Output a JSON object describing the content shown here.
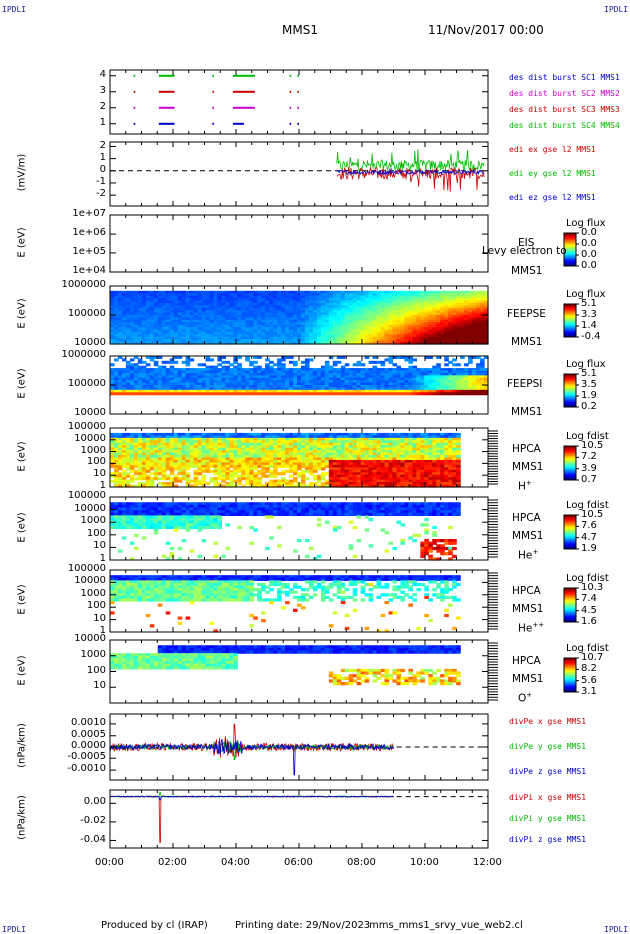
{
  "header": {
    "corner_tl": "IPDLI",
    "corner_tr": "IPDLI",
    "corner_bl": "IPDLI",
    "corner_br": "IPDLI",
    "mission": "MMS1",
    "datetime": "11/Nov/2017 00:00"
  },
  "footer": {
    "produced_by": "Produced by cl (IRAP)",
    "printing_date": "Printing date: 29/Nov/2023",
    "filename": "mms_mms1_srvy_vue_web2.cl"
  },
  "time_axis": {
    "ticks": [
      "00:00",
      "02:00",
      "04:00",
      "06:00",
      "08:00",
      "10:00",
      "12:00"
    ]
  },
  "panels": [
    {
      "id": "burst",
      "yticks": [
        "4",
        "3",
        "2",
        "1"
      ],
      "legend": [
        {
          "text": "des dist burst SC1 MMS1",
          "color": "#0000cc"
        },
        {
          "text": "des dist burst SC2 MMS2",
          "color": "#cc00cc"
        },
        {
          "text": "des dist burst SC3 MMS3",
          "color": "#cc0000"
        },
        {
          "text": "des dist burst SC4 MMS4",
          "color": "#00bb00"
        }
      ]
    },
    {
      "id": "efield",
      "ylabel": "(mV/m)",
      "yticks": [
        "2",
        "1",
        "0",
        "-1",
        "-2"
      ],
      "legend": [
        {
          "text": "edi ex gse l2 MMS1",
          "color": "#cc0000"
        },
        {
          "text": "edi ey gse l2 MMS1",
          "color": "#00bb00"
        },
        {
          "text": "edi ez gse l2 MMS1",
          "color": "#0000cc"
        }
      ]
    },
    {
      "id": "eis",
      "ylabel": "E (eV)",
      "yticks": [
        "1e+07",
        "1e+06",
        "1e+05",
        "1e+04"
      ],
      "instrument": "EIS",
      "overlay": "Levy electron to",
      "sc": "MMS1",
      "cbar_title": "Log flux",
      "cbar_ticks": [
        "0.0",
        "0.0",
        "0.0",
        "0.0"
      ]
    },
    {
      "id": "feepse",
      "ylabel": "E (eV)",
      "yticks": [
        "1000000",
        "100000",
        "10000"
      ],
      "instrument": "FEEPSE",
      "sc": "MMS1",
      "cbar_title": "Log flux",
      "cbar_ticks": [
        "5.1",
        "3.3",
        "1.4",
        "-0.4"
      ]
    },
    {
      "id": "feepsi",
      "ylabel": "E (eV)",
      "yticks": [
        "1000000",
        "100000",
        "10000"
      ],
      "instrument": "FEEPSI",
      "sc": "MMS1",
      "cbar_title": "Log flux",
      "cbar_ticks": [
        "5.1",
        "3.5",
        "1.9",
        "0.2"
      ]
    },
    {
      "id": "hpca_h",
      "ylabel": "E (eV)",
      "yticks": [
        "100000",
        "10000",
        "1000",
        "100",
        "10",
        "1"
      ],
      "instrument": "HPCA",
      "sc": "MMS1",
      "species": "H",
      "species_sup": "+",
      "cbar_title": "Log fdist",
      "cbar_ticks": [
        "10.5",
        "7.2",
        "3.9",
        "0.7"
      ]
    },
    {
      "id": "hpca_he",
      "ylabel": "E (eV)",
      "yticks": [
        "100000",
        "10000",
        "1000",
        "100",
        "10",
        "1"
      ],
      "instrument": "HPCA",
      "sc": "MMS1",
      "species": "He",
      "species_sup": "+",
      "cbar_title": "Log fdist",
      "cbar_ticks": [
        "10.5",
        "7.6",
        "4.7",
        "1.9"
      ]
    },
    {
      "id": "hpca_hepp",
      "ylabel": "E (eV)",
      "yticks": [
        "100000",
        "10000",
        "1000",
        "100",
        "10",
        "1"
      ],
      "instrument": "HPCA",
      "sc": "MMS1",
      "species": "He",
      "species_sup": "++",
      "cbar_title": "Log fdist",
      "cbar_ticks": [
        "10.3",
        "7.4",
        "4.5",
        "1.6"
      ]
    },
    {
      "id": "hpca_o",
      "ylabel": "E (eV)",
      "yticks": [
        "10000",
        "1000",
        "100",
        "10"
      ],
      "instrument": "HPCA",
      "sc": "MMS1",
      "species": "O",
      "species_sup": "+",
      "cbar_title": "Log fdist",
      "cbar_ticks": [
        "10.7",
        "8.2",
        "5.6",
        "3.1"
      ]
    },
    {
      "id": "divpe",
      "ylabel": "(nPa/km)",
      "yticks": [
        "0.0010",
        "0.0005",
        "0.0000",
        "-0.0005",
        "-0.0010"
      ],
      "legend": [
        {
          "text": "divPe x gse MMS1",
          "color": "#cc0000"
        },
        {
          "text": "divPe y gse MMS1",
          "color": "#00bb00"
        },
        {
          "text": "divPe z gse MMS1",
          "color": "#0000cc"
        }
      ]
    },
    {
      "id": "divpi",
      "ylabel": "(nPa/km)",
      "yticks": [
        "0.00",
        "-0.02",
        "-0.04"
      ],
      "legend": [
        {
          "text": "divPi x gse MMS1",
          "color": "#cc0000"
        },
        {
          "text": "divPi y gse MMS1",
          "color": "#00bb00"
        },
        {
          "text": "divPi z gse MMS1",
          "color": "#0000cc"
        }
      ]
    }
  ],
  "chart_data": {
    "type": "heatmap",
    "title": "MMS1",
    "x_range_hours": [
      0,
      12
    ],
    "panels": [
      {
        "id": "burst",
        "kind": "intervals",
        "series": [
          {
            "name": "des dist burst SC1 MMS1",
            "level": 1,
            "intervals": [
              [
                0.75,
                0.8
              ],
              [
                1.55,
                2.05
              ],
              [
                3.25,
                3.3
              ],
              [
                3.9,
                4.25
              ],
              [
                5.7,
                5.75
              ],
              [
                5.95,
                6.0
              ]
            ]
          },
          {
            "name": "des dist burst SC2 MMS2",
            "level": 2,
            "intervals": [
              [
                0.75,
                0.8
              ],
              [
                1.55,
                2.05
              ],
              [
                3.25,
                3.3
              ],
              [
                3.9,
                4.6
              ],
              [
                5.7,
                5.75
              ],
              [
                5.95,
                6.0
              ]
            ]
          },
          {
            "name": "des dist burst SC3 MMS3",
            "level": 3,
            "intervals": [
              [
                0.75,
                0.8
              ],
              [
                1.55,
                2.05
              ],
              [
                3.25,
                3.3
              ],
              [
                3.9,
                4.6
              ],
              [
                5.7,
                5.75
              ],
              [
                5.95,
                6.0
              ]
            ]
          },
          {
            "name": "des dist burst SC4 MMS4",
            "level": 4,
            "intervals": [
              [
                0.75,
                0.8
              ],
              [
                1.55,
                2.05
              ],
              [
                3.25,
                3.3
              ],
              [
                3.9,
                4.6
              ],
              [
                5.7,
                5.75
              ],
              [
                5.95,
                6.0
              ]
            ]
          }
        ]
      },
      {
        "id": "efield",
        "kind": "lines",
        "ylim": [
          -2.5,
          2.5
        ],
        "data_window_hours": [
          7.2,
          11.9
        ],
        "series": [
          {
            "name": "edi ex gse l2 MMS1",
            "mean": -0.2,
            "spread": 0.9
          },
          {
            "name": "edi ey gse l2 MMS1",
            "mean": 0.4,
            "spread": 0.8
          },
          {
            "name": "edi ez gse l2 MMS1",
            "mean": -0.1,
            "spread": 0.3
          }
        ]
      },
      {
        "id": "eis",
        "kind": "spectrogram",
        "ylim": [
          "1e+04",
          "1e+07"
        ],
        "yscale": "log"
      },
      {
        "id": "feepse",
        "kind": "spectrogram",
        "yscale": "log",
        "ylim": [
          10000,
          1000000
        ],
        "zlim": [
          -0.4,
          5.1
        ]
      },
      {
        "id": "feepsi",
        "kind": "spectrogram",
        "yscale": "log",
        "ylim": [
          10000,
          1000000
        ],
        "zlim": [
          0.2,
          5.1
        ]
      },
      {
        "id": "hpca_h",
        "kind": "spectrogram",
        "yscale": "log",
        "ylim": [
          1,
          100000
        ],
        "zlim": [
          0.7,
          10.5
        ],
        "data_window_hours": [
          0,
          11.15
        ]
      },
      {
        "id": "hpca_he",
        "kind": "spectrogram",
        "yscale": "log",
        "ylim": [
          1,
          100000
        ],
        "zlim": [
          1.9,
          10.5
        ],
        "data_window_hours": [
          0,
          11.15
        ]
      },
      {
        "id": "hpca_hepp",
        "kind": "spectrogram",
        "yscale": "log",
        "ylim": [
          1,
          100000
        ],
        "zlim": [
          1.6,
          10.3
        ],
        "data_window_hours": [
          0,
          11.15
        ]
      },
      {
        "id": "hpca_o",
        "kind": "spectrogram",
        "yscale": "log",
        "ylim": [
          1,
          100000
        ],
        "zlim": [
          3.1,
          10.7
        ],
        "data_window_hours": [
          0,
          11.15
        ]
      },
      {
        "id": "divpe",
        "kind": "lines",
        "ylim": [
          -0.0013,
          0.0013
        ],
        "data_window_hours": [
          0,
          9.0
        ],
        "series": [
          {
            "name": "divPe x gse MMS1",
            "amplitude": 0.00015,
            "peak_hours": 3.95,
            "peak_value": 0.0009
          },
          {
            "name": "divPe y gse MMS1",
            "amplitude": 8e-05,
            "peak_hours": 3.95,
            "peak_value": -0.0005
          },
          {
            "name": "divPe z gse MMS1",
            "amplitude": 0.0001,
            "peak_hours": 5.85,
            "peak_value": -0.0011
          }
        ]
      },
      {
        "id": "divpi",
        "kind": "lines",
        "ylim": [
          -0.047,
          0.006
        ],
        "data_window_hours": [
          0,
          9.0
        ],
        "series": [
          {
            "name": "divPi x gse MMS1",
            "amplitude": 0.0005,
            "peak_hours": 1.6,
            "peak_value": -0.042
          },
          {
            "name": "divPi y gse MMS1",
            "amplitude": 0.0004,
            "peak_hours": 1.6,
            "peak_value": 0.004
          },
          {
            "name": "divPi z gse MMS1",
            "amplitude": 0.0005,
            "peak_hours": 1.6,
            "peak_value": -0.003
          }
        ]
      }
    ]
  }
}
